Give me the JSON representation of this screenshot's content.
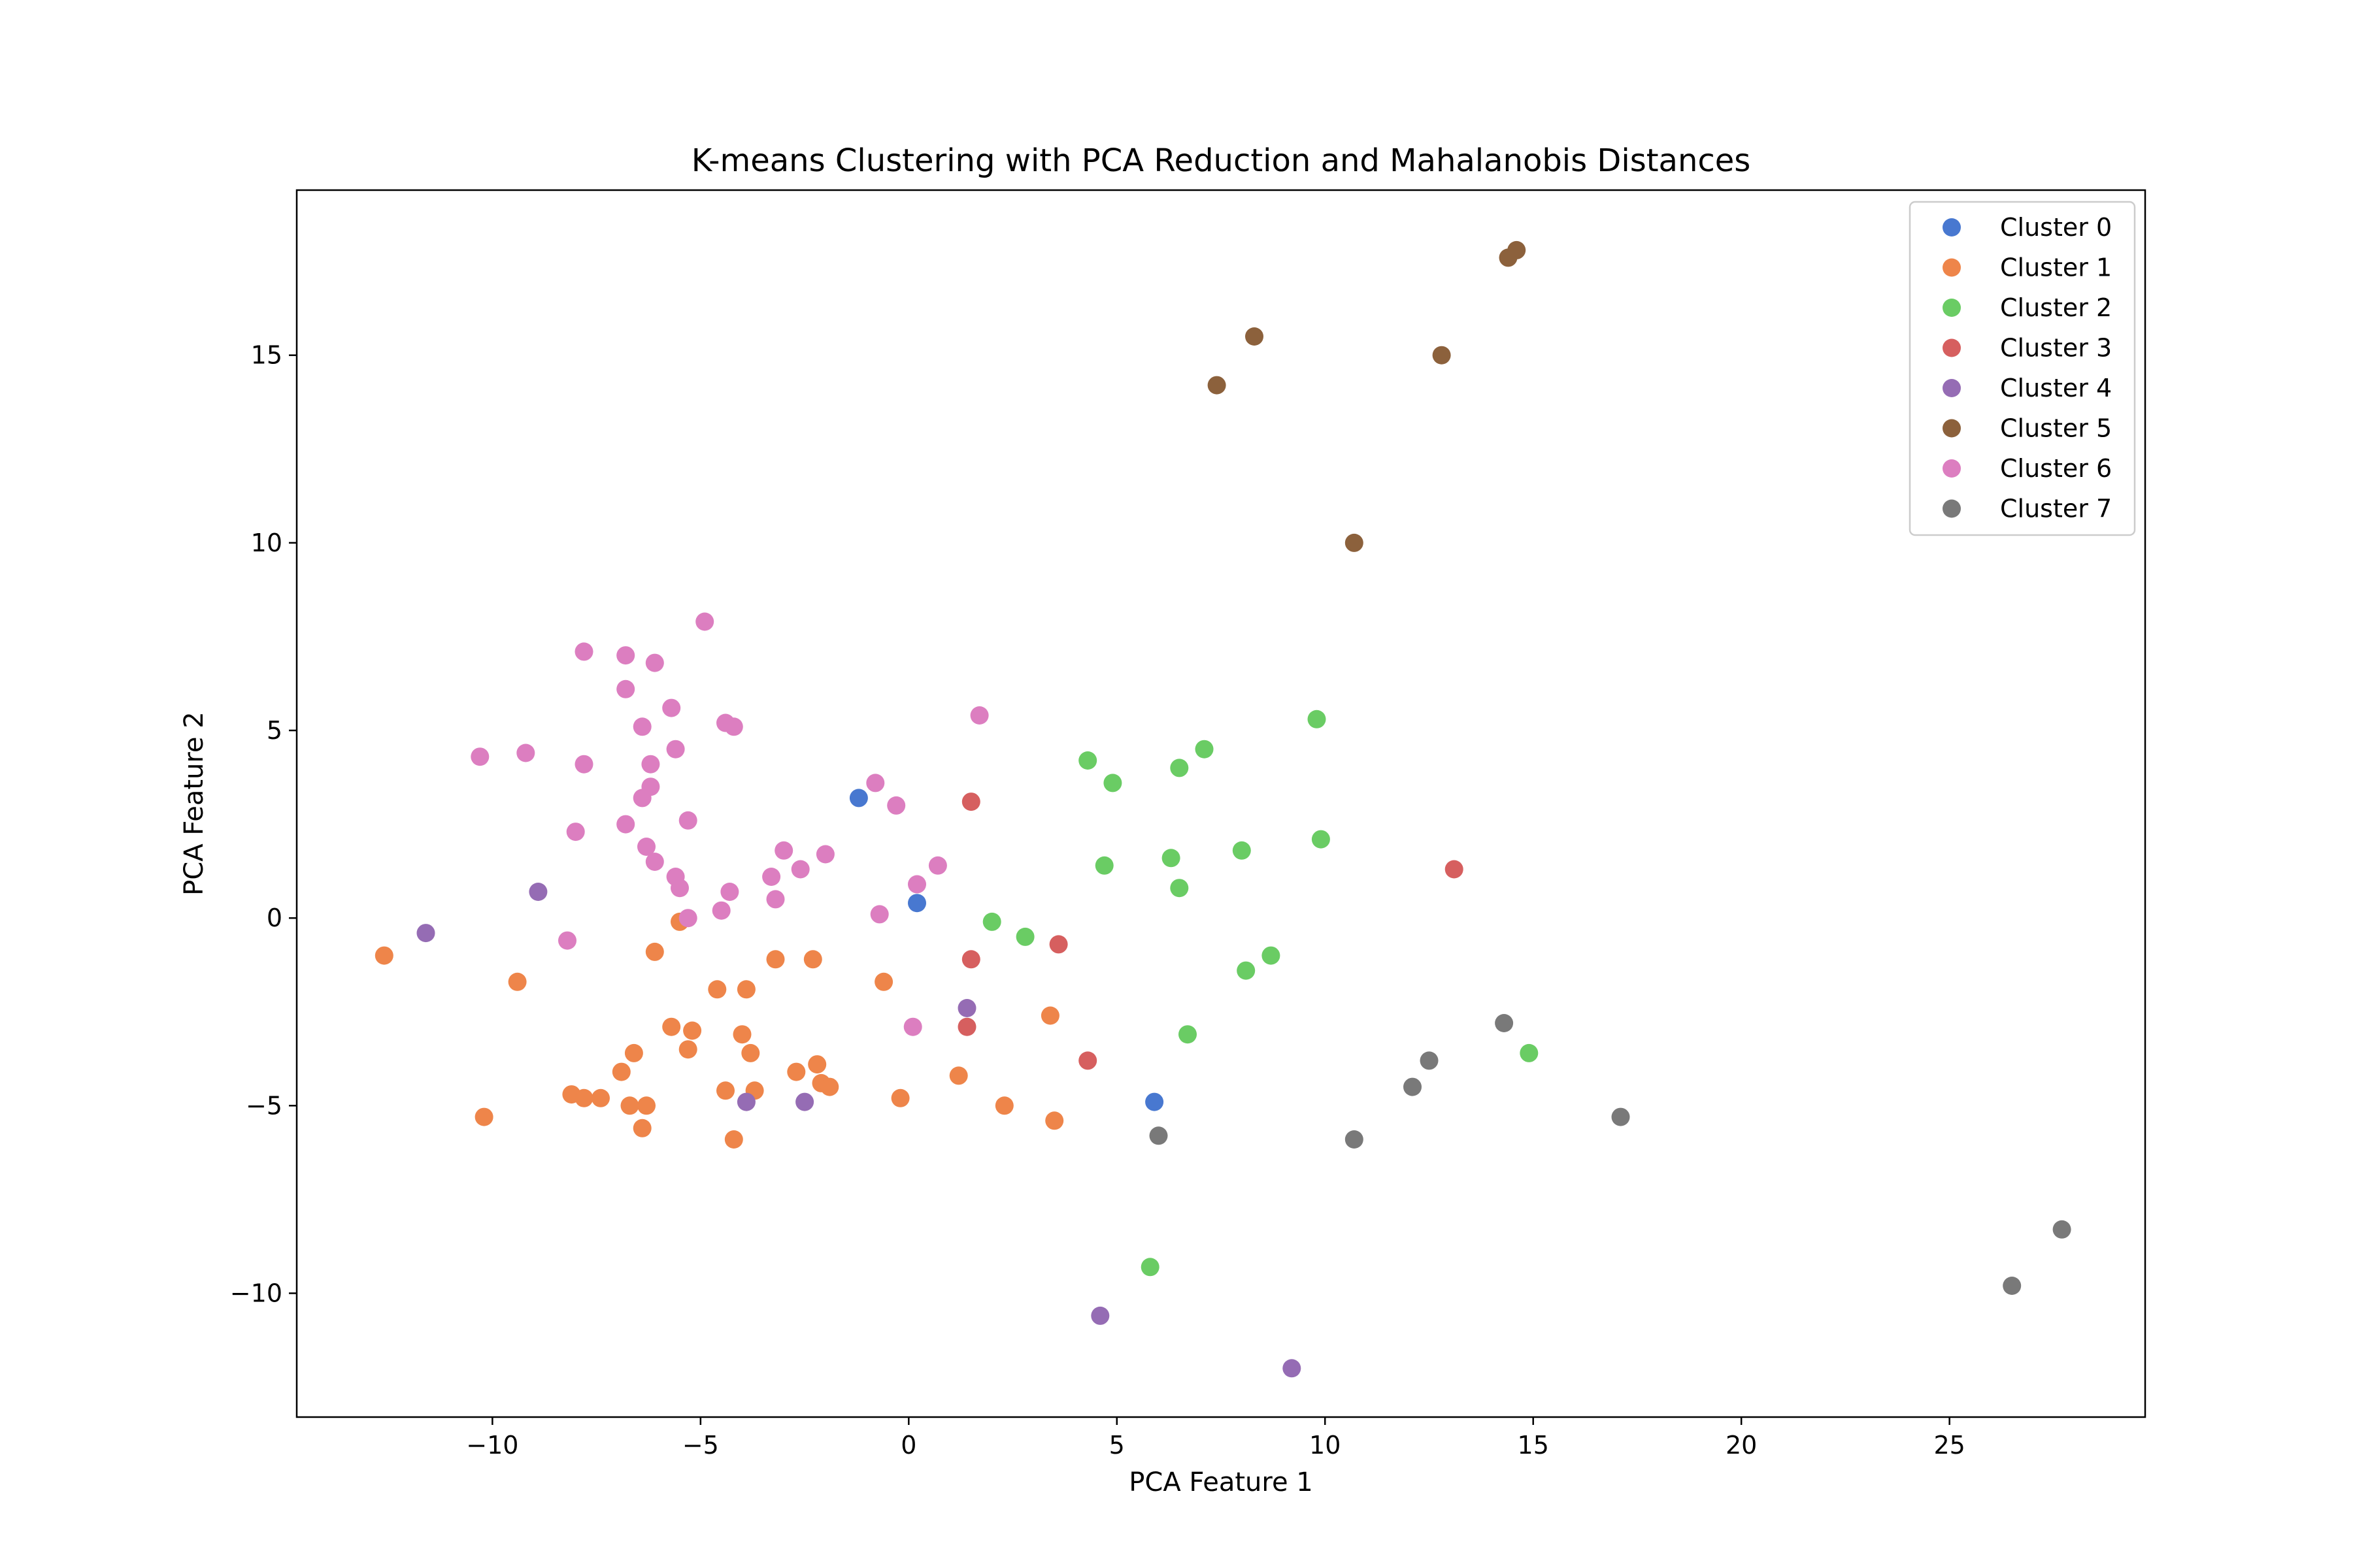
{
  "chart_data": {
    "type": "scatter",
    "title": "K-means Clustering with PCA Reduction and Mahalanobis Distances",
    "xlabel": "PCA Feature 1",
    "ylabel": "PCA Feature 2",
    "xlim": [
      -14.7,
      29.7
    ],
    "ylim": [
      -13.3,
      19.4
    ],
    "xticks": [
      -10,
      -5,
      0,
      5,
      10,
      15,
      20,
      25
    ],
    "yticks": [
      -10,
      -5,
      0,
      5,
      10,
      15
    ],
    "grid": false,
    "legend_placement": "top-right",
    "series": [
      {
        "name": "Cluster 0",
        "color": "#4878d0",
        "points": [
          [
            -1.2,
            3.2
          ],
          [
            0.2,
            0.4
          ],
          [
            5.9,
            -4.9
          ]
        ]
      },
      {
        "name": "Cluster 1",
        "color": "#ee854a",
        "points": [
          [
            -12.6,
            -1.0
          ],
          [
            -10.2,
            -5.3
          ],
          [
            -9.4,
            -1.7
          ],
          [
            -8.1,
            -4.7
          ],
          [
            -7.8,
            -4.8
          ],
          [
            -7.4,
            -4.8
          ],
          [
            -6.9,
            -4.1
          ],
          [
            -6.7,
            -5.0
          ],
          [
            -6.6,
            -3.6
          ],
          [
            -6.4,
            -5.6
          ],
          [
            -6.3,
            -5.0
          ],
          [
            -6.1,
            -0.9
          ],
          [
            -5.7,
            -2.9
          ],
          [
            -5.5,
            -0.1
          ],
          [
            -5.3,
            -3.5
          ],
          [
            -5.2,
            -3.0
          ],
          [
            -4.6,
            -1.9
          ],
          [
            -4.4,
            -4.6
          ],
          [
            -4.2,
            -5.9
          ],
          [
            -4.0,
            -3.1
          ],
          [
            -3.9,
            -1.9
          ],
          [
            -3.8,
            -3.6
          ],
          [
            -3.7,
            -4.6
          ],
          [
            -3.2,
            -1.1
          ],
          [
            -2.7,
            -4.1
          ],
          [
            -2.3,
            -1.1
          ],
          [
            -2.2,
            -3.9
          ],
          [
            -2.1,
            -4.4
          ],
          [
            -1.9,
            -4.5
          ],
          [
            -0.6,
            -1.7
          ],
          [
            -0.2,
            -4.8
          ],
          [
            1.2,
            -4.2
          ],
          [
            2.3,
            -5.0
          ],
          [
            3.4,
            -2.6
          ],
          [
            3.5,
            -5.4
          ]
        ]
      },
      {
        "name": "Cluster 2",
        "color": "#6acc64",
        "points": [
          [
            2.0,
            -0.1
          ],
          [
            2.8,
            -0.5
          ],
          [
            4.3,
            4.2
          ],
          [
            4.7,
            1.4
          ],
          [
            4.9,
            3.6
          ],
          [
            5.8,
            -9.3
          ],
          [
            6.3,
            1.6
          ],
          [
            6.5,
            4.0
          ],
          [
            6.5,
            0.8
          ],
          [
            6.7,
            -3.1
          ],
          [
            7.1,
            4.5
          ],
          [
            8.0,
            1.8
          ],
          [
            8.1,
            -1.4
          ],
          [
            8.7,
            -1.0
          ],
          [
            9.8,
            5.3
          ],
          [
            9.9,
            2.1
          ],
          [
            14.9,
            -3.6
          ]
        ]
      },
      {
        "name": "Cluster 3",
        "color": "#d65f5f",
        "points": [
          [
            1.5,
            -1.1
          ],
          [
            1.5,
            3.1
          ],
          [
            1.4,
            -2.9
          ],
          [
            3.6,
            -0.7
          ],
          [
            4.3,
            -3.8
          ],
          [
            13.1,
            1.3
          ]
        ]
      },
      {
        "name": "Cluster 4",
        "color": "#956cb4",
        "points": [
          [
            -11.6,
            -0.4
          ],
          [
            -8.9,
            0.7
          ],
          [
            -3.9,
            -4.9
          ],
          [
            -2.5,
            -4.9
          ],
          [
            1.4,
            -2.4
          ],
          [
            4.6,
            -10.6
          ],
          [
            9.2,
            -12.0
          ]
        ]
      },
      {
        "name": "Cluster 5",
        "color": "#8c613c",
        "points": [
          [
            7.4,
            14.2
          ],
          [
            8.3,
            15.5
          ],
          [
            10.7,
            10.0
          ],
          [
            12.8,
            15.0
          ],
          [
            14.4,
            17.6
          ],
          [
            14.6,
            17.8
          ]
        ]
      },
      {
        "name": "Cluster 6",
        "color": "#dc7ec0",
        "points": [
          [
            -10.3,
            4.3
          ],
          [
            -9.2,
            4.4
          ],
          [
            -8.2,
            -0.6
          ],
          [
            -8.0,
            2.3
          ],
          [
            -7.8,
            4.1
          ],
          [
            -7.8,
            7.1
          ],
          [
            -6.8,
            7.0
          ],
          [
            -6.8,
            6.1
          ],
          [
            -6.8,
            2.5
          ],
          [
            -6.4,
            5.1
          ],
          [
            -6.4,
            3.2
          ],
          [
            -6.3,
            1.9
          ],
          [
            -6.2,
            4.1
          ],
          [
            -6.2,
            3.5
          ],
          [
            -6.1,
            1.5
          ],
          [
            -6.1,
            6.8
          ],
          [
            -5.7,
            5.6
          ],
          [
            -5.6,
            4.5
          ],
          [
            -5.6,
            1.1
          ],
          [
            -5.5,
            0.8
          ],
          [
            -5.3,
            2.6
          ],
          [
            -5.3,
            0.0
          ],
          [
            -4.9,
            7.9
          ],
          [
            -4.5,
            0.2
          ],
          [
            -4.4,
            5.2
          ],
          [
            -4.3,
            0.7
          ],
          [
            -4.2,
            5.1
          ],
          [
            -3.3,
            1.1
          ],
          [
            -3.2,
            0.5
          ],
          [
            -3.0,
            1.8
          ],
          [
            -2.6,
            1.3
          ],
          [
            -2.0,
            1.7
          ],
          [
            -0.8,
            3.6
          ],
          [
            -0.7,
            0.1
          ],
          [
            -0.3,
            3.0
          ],
          [
            0.1,
            -2.9
          ],
          [
            0.2,
            0.9
          ],
          [
            0.7,
            1.4
          ],
          [
            1.7,
            5.4
          ]
        ]
      },
      {
        "name": "Cluster 7",
        "color": "#797979",
        "points": [
          [
            6.0,
            -5.8
          ],
          [
            10.7,
            -5.9
          ],
          [
            12.1,
            -4.5
          ],
          [
            12.5,
            -3.8
          ],
          [
            14.3,
            -2.8
          ],
          [
            17.1,
            -5.3
          ],
          [
            26.5,
            -9.8
          ],
          [
            27.7,
            -8.3
          ]
        ]
      }
    ]
  }
}
